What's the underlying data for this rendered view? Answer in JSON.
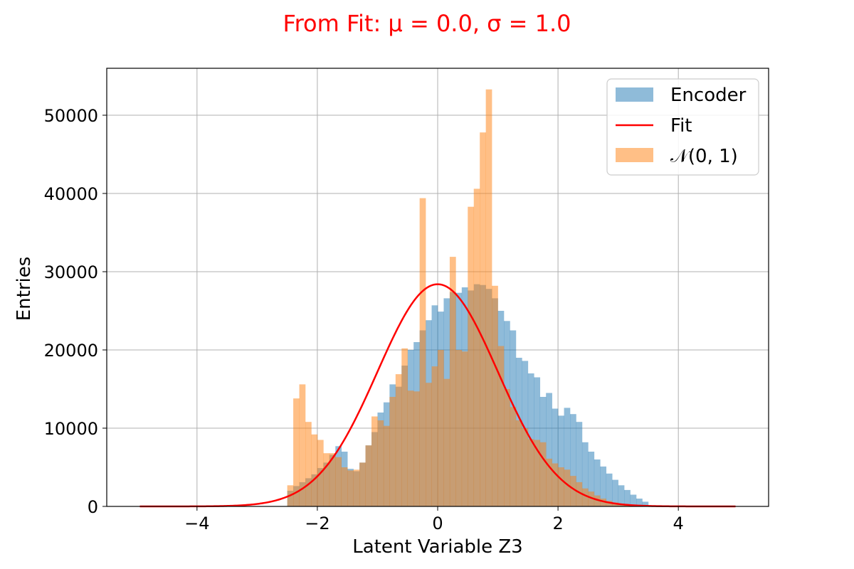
{
  "chart_data": {
    "type": "histogram",
    "title": "From Fit: μ = 0.0, σ = 1.0",
    "title_color": "#ff0000",
    "xlabel": "Latent Variable Z3",
    "ylabel": "Entries",
    "xlim": [
      -5.5,
      5.5
    ],
    "ylim": [
      0,
      56000
    ],
    "xticks": [
      -4,
      -2,
      0,
      2,
      4
    ],
    "xtick_labels": [
      "−4",
      "−2",
      "0",
      "2",
      "4"
    ],
    "yticks": [
      0,
      10000,
      20000,
      30000,
      40000,
      50000
    ],
    "ytick_labels": [
      "0",
      "10000",
      "20000",
      "30000",
      "40000",
      "50000"
    ],
    "grid": true,
    "legend_position": "upper-right",
    "bin_range": [
      -5,
      5
    ],
    "bin_width": 0.1,
    "series": [
      {
        "name": "Encoder",
        "kind": "histogram",
        "color": "#1f77b4",
        "alpha": 0.5,
        "bins_start": -2.5,
        "values": [
          2000,
          2600,
          3100,
          3600,
          4100,
          4900,
          5600,
          6600,
          7700,
          7000,
          4800,
          4500,
          5600,
          7800,
          9500,
          12000,
          13300,
          15600,
          15300,
          18000,
          20000,
          21000,
          22500,
          23800,
          25700,
          24900,
          26600,
          27400,
          27300,
          28000,
          27600,
          28400,
          28300,
          27800,
          26600,
          25000,
          23700,
          22500,
          19000,
          18600,
          17000,
          16500,
          14000,
          14500,
          12500,
          11600,
          12600,
          11800,
          10800,
          8200,
          7000,
          6000,
          5100,
          4200,
          3400,
          2700,
          2100,
          1500,
          1000,
          600
        ]
      },
      {
        "name": "Fit",
        "kind": "line",
        "color": "#ff0000",
        "mu": 0.0,
        "sigma": 1.0,
        "amplitude": 28400,
        "x_range": [
          -4.95,
          4.95
        ]
      },
      {
        "name": "𝒩(0, 1)",
        "kind": "histogram",
        "color": "#ff7f0e",
        "alpha": 0.5,
        "bins_start": -2.5,
        "values": [
          2700,
          13800,
          15600,
          10800,
          9200,
          8500,
          6800,
          6800,
          6300,
          5000,
          4600,
          4700,
          5600,
          7800,
          11500,
          11000,
          10300,
          14000,
          16900,
          20200,
          14800,
          14700,
          39400,
          15800,
          17900,
          20000,
          16300,
          31900,
          20000,
          19800,
          38300,
          40600,
          47800,
          53300,
          28200,
          20500,
          15000,
          12700,
          11000,
          10000,
          8600,
          8500,
          8200,
          6100,
          5500,
          5000,
          4700,
          3900,
          3100,
          2300,
          1900,
          1400,
          1000,
          700,
          500,
          350,
          220,
          140,
          80,
          40
        ]
      }
    ]
  }
}
